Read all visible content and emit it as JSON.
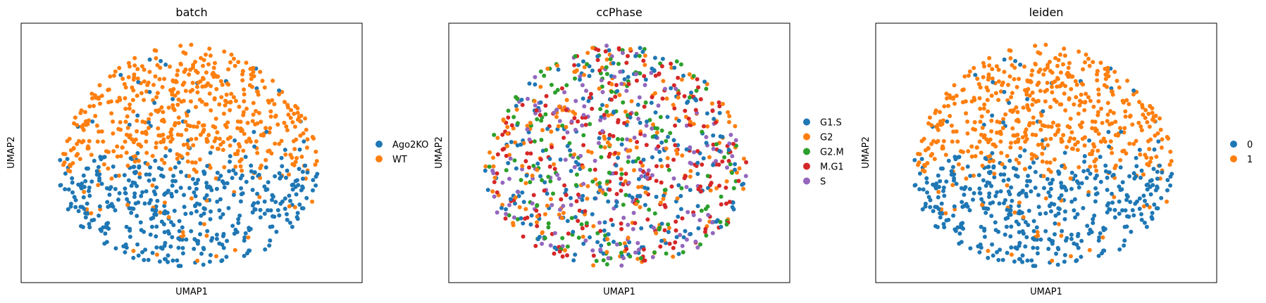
{
  "colors": {
    "tab_blue": "#1f77b4",
    "tab_orange": "#ff7f0e",
    "tab_green": "#2ca02c",
    "tab_red": "#d62728",
    "tab_purple": "#9467bd"
  },
  "chart_data": [
    {
      "type": "scatter",
      "title": "batch",
      "xlabel": "UMAP1",
      "ylabel": "UMAP2",
      "ticks": false,
      "grid": false,
      "legend_position": "right",
      "legend": [
        {
          "label": "Ago2KO",
          "color": "#1f77b4"
        },
        {
          "label": "WT",
          "color": "#ff7f0e"
        }
      ],
      "rule": "split",
      "seed": 11,
      "n_points": 1000
    },
    {
      "type": "scatter",
      "title": "ccPhase",
      "xlabel": "UMAP1",
      "ylabel": "UMAP2",
      "ticks": false,
      "grid": false,
      "legend_position": "right",
      "legend": [
        {
          "label": "G1.S",
          "color": "#1f77b4"
        },
        {
          "label": "G2",
          "color": "#ff7f0e"
        },
        {
          "label": "G2.M",
          "color": "#2ca02c"
        },
        {
          "label": "M.G1",
          "color": "#d62728"
        },
        {
          "label": "S",
          "color": "#9467bd"
        }
      ],
      "rule": "mixed",
      "seed": 23,
      "n_points": 1000
    },
    {
      "type": "scatter",
      "title": "leiden",
      "xlabel": "UMAP1",
      "ylabel": "UMAP2",
      "ticks": false,
      "grid": false,
      "legend_position": "right",
      "legend": [
        {
          "label": "0",
          "color": "#1f77b4"
        },
        {
          "label": "1",
          "color": "#ff7f0e"
        }
      ],
      "rule": "split",
      "seed": 11,
      "n_points": 1000
    }
  ]
}
